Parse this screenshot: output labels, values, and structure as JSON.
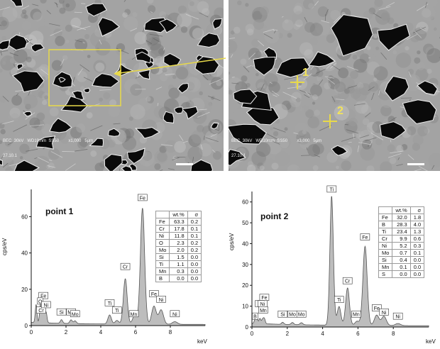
{
  "sem_left": {
    "caption_line1": "BEC  30kV   WD10mm  SS50        x1,000   5μm",
    "caption_line2": "27.10.1"
  },
  "sem_right": {
    "caption_line1": "BEC  30kV   WD10mm  SS50        x3,000   5μm",
    "caption_line2": "27.10.1",
    "marker_1": "1",
    "marker_2": "2"
  },
  "colors": {
    "highlight": "#e8d94a",
    "spectrum_fill": "#bdbdbd",
    "spectrum_line": "#555555"
  },
  "chart_data": [
    {
      "type": "area",
      "title": "point 1",
      "xlabel": "keV",
      "ylabel": "cps/eV",
      "xlim": [
        0,
        10
      ],
      "ylim": [
        0,
        75
      ],
      "xticks": [
        0,
        2,
        4,
        6,
        8
      ],
      "yticks": [
        0,
        20,
        40,
        60
      ],
      "peak_labels": [
        {
          "label": "Fe",
          "x": 0.7,
          "y": 14
        },
        {
          "label": "O",
          "x": 0.52,
          "y": 11
        },
        {
          "label": "Cr",
          "x": 0.57,
          "y": 6
        },
        {
          "label": "Ni",
          "x": 0.85,
          "y": 9
        },
        {
          "label": "Si",
          "x": 1.74,
          "y": 5
        },
        {
          "label": "Mo",
          "x": 2.29,
          "y": 5
        },
        {
          "label": "Mo",
          "x": 2.52,
          "y": 4
        },
        {
          "label": "Ti",
          "x": 4.51,
          "y": 10
        },
        {
          "label": "Ti",
          "x": 4.93,
          "y": 6
        },
        {
          "label": "Cr",
          "x": 5.41,
          "y": 30
        },
        {
          "label": "Mn",
          "x": 5.9,
          "y": 4
        },
        {
          "label": "Fe",
          "x": 6.4,
          "y": 68
        },
        {
          "label": "Fe",
          "x": 7.06,
          "y": 15
        },
        {
          "label": "Ni",
          "x": 7.47,
          "y": 12
        },
        {
          "label": "Ni",
          "x": 8.26,
          "y": 4
        }
      ],
      "peaks": [
        [
          0.28,
          10
        ],
        [
          0.52,
          7
        ],
        [
          0.57,
          5
        ],
        [
          0.7,
          9
        ],
        [
          0.85,
          6
        ],
        [
          1.74,
          2
        ],
        [
          2.29,
          2
        ],
        [
          2.52,
          1.5
        ],
        [
          4.51,
          5
        ],
        [
          4.93,
          2
        ],
        [
          5.41,
          25
        ],
        [
          5.95,
          5
        ],
        [
          6.4,
          64
        ],
        [
          7.06,
          10
        ],
        [
          7.47,
          8
        ],
        [
          8.26,
          1.5
        ]
      ],
      "table": {
        "headers": [
          "",
          "wt.%",
          "σ"
        ],
        "rows": [
          [
            "Fe",
            "63.3",
            "0.2"
          ],
          [
            "Cr",
            "17.8",
            "0.1"
          ],
          [
            "Ni",
            "11.8",
            "0.1"
          ],
          [
            "O",
            "2.3",
            "0.2"
          ],
          [
            "Mo",
            "2.0",
            "0.2"
          ],
          [
            "Si",
            "1.5",
            "0.0"
          ],
          [
            "Ti",
            "1.1",
            "0.0"
          ],
          [
            "Mn",
            "0.3",
            "0.0"
          ],
          [
            "B",
            "0.0",
            "0.0"
          ]
        ]
      }
    },
    {
      "type": "area",
      "title": "point 2",
      "xlabel": "keV",
      "ylabel": "cps/eV",
      "xlim": [
        0,
        10
      ],
      "ylim": [
        0,
        65
      ],
      "xticks": [
        0,
        2,
        4,
        6,
        8
      ],
      "yticks": [
        0,
        10,
        20,
        30,
        40,
        50,
        60
      ],
      "peak_labels": [
        {
          "label": "B",
          "x": 0.18,
          "y": 3
        },
        {
          "label": "Fe",
          "x": 0.7,
          "y": 12
        },
        {
          "label": "Ti",
          "x": 0.45,
          "y": 9
        },
        {
          "label": "Ni",
          "x": 0.6,
          "y": 9
        },
        {
          "label": "Mn",
          "x": 0.64,
          "y": 6
        },
        {
          "label": "Si",
          "x": 1.74,
          "y": 4
        },
        {
          "label": "Mo",
          "x": 2.29,
          "y": 4
        },
        {
          "label": "Mo",
          "x": 2.8,
          "y": 4
        },
        {
          "label": "Ti",
          "x": 4.51,
          "y": 64
        },
        {
          "label": "Ti",
          "x": 4.93,
          "y": 11
        },
        {
          "label": "Cr",
          "x": 5.41,
          "y": 20
        },
        {
          "label": "Mn",
          "x": 5.9,
          "y": 4
        },
        {
          "label": "Fe",
          "x": 6.4,
          "y": 41
        },
        {
          "label": "Fe",
          "x": 7.06,
          "y": 7
        },
        {
          "label": "Ni",
          "x": 7.47,
          "y": 5
        },
        {
          "label": "Ni",
          "x": 8.26,
          "y": 3
        }
      ],
      "peaks": [
        [
          0.18,
          2
        ],
        [
          0.28,
          3
        ],
        [
          0.45,
          2.5
        ],
        [
          0.6,
          2
        ],
        [
          0.7,
          2.5
        ],
        [
          1.74,
          1
        ],
        [
          2.29,
          1
        ],
        [
          2.8,
          1
        ],
        [
          4.51,
          62
        ],
        [
          4.93,
          9
        ],
        [
          5.41,
          18
        ],
        [
          5.95,
          2
        ],
        [
          6.4,
          38
        ],
        [
          7.06,
          5
        ],
        [
          7.47,
          4.5
        ],
        [
          8.26,
          1
        ]
      ],
      "table": {
        "headers": [
          "",
          "wt.%",
          "σ"
        ],
        "rows": [
          [
            "Fe",
            "32.0",
            "1.8"
          ],
          [
            "B",
            "28.3",
            "4.0"
          ],
          [
            "Ti",
            "23.4",
            "1.3"
          ],
          [
            "Cr",
            "9.9",
            "0.6"
          ],
          [
            "Ni",
            "5.2",
            "0.3"
          ],
          [
            "Mo",
            "0.7",
            "0.1"
          ],
          [
            "Si",
            "0.4",
            "0.0"
          ],
          [
            "Mn",
            "0.1",
            "0.0"
          ],
          [
            "S",
            "0.0",
            "0.0"
          ]
        ]
      }
    }
  ]
}
